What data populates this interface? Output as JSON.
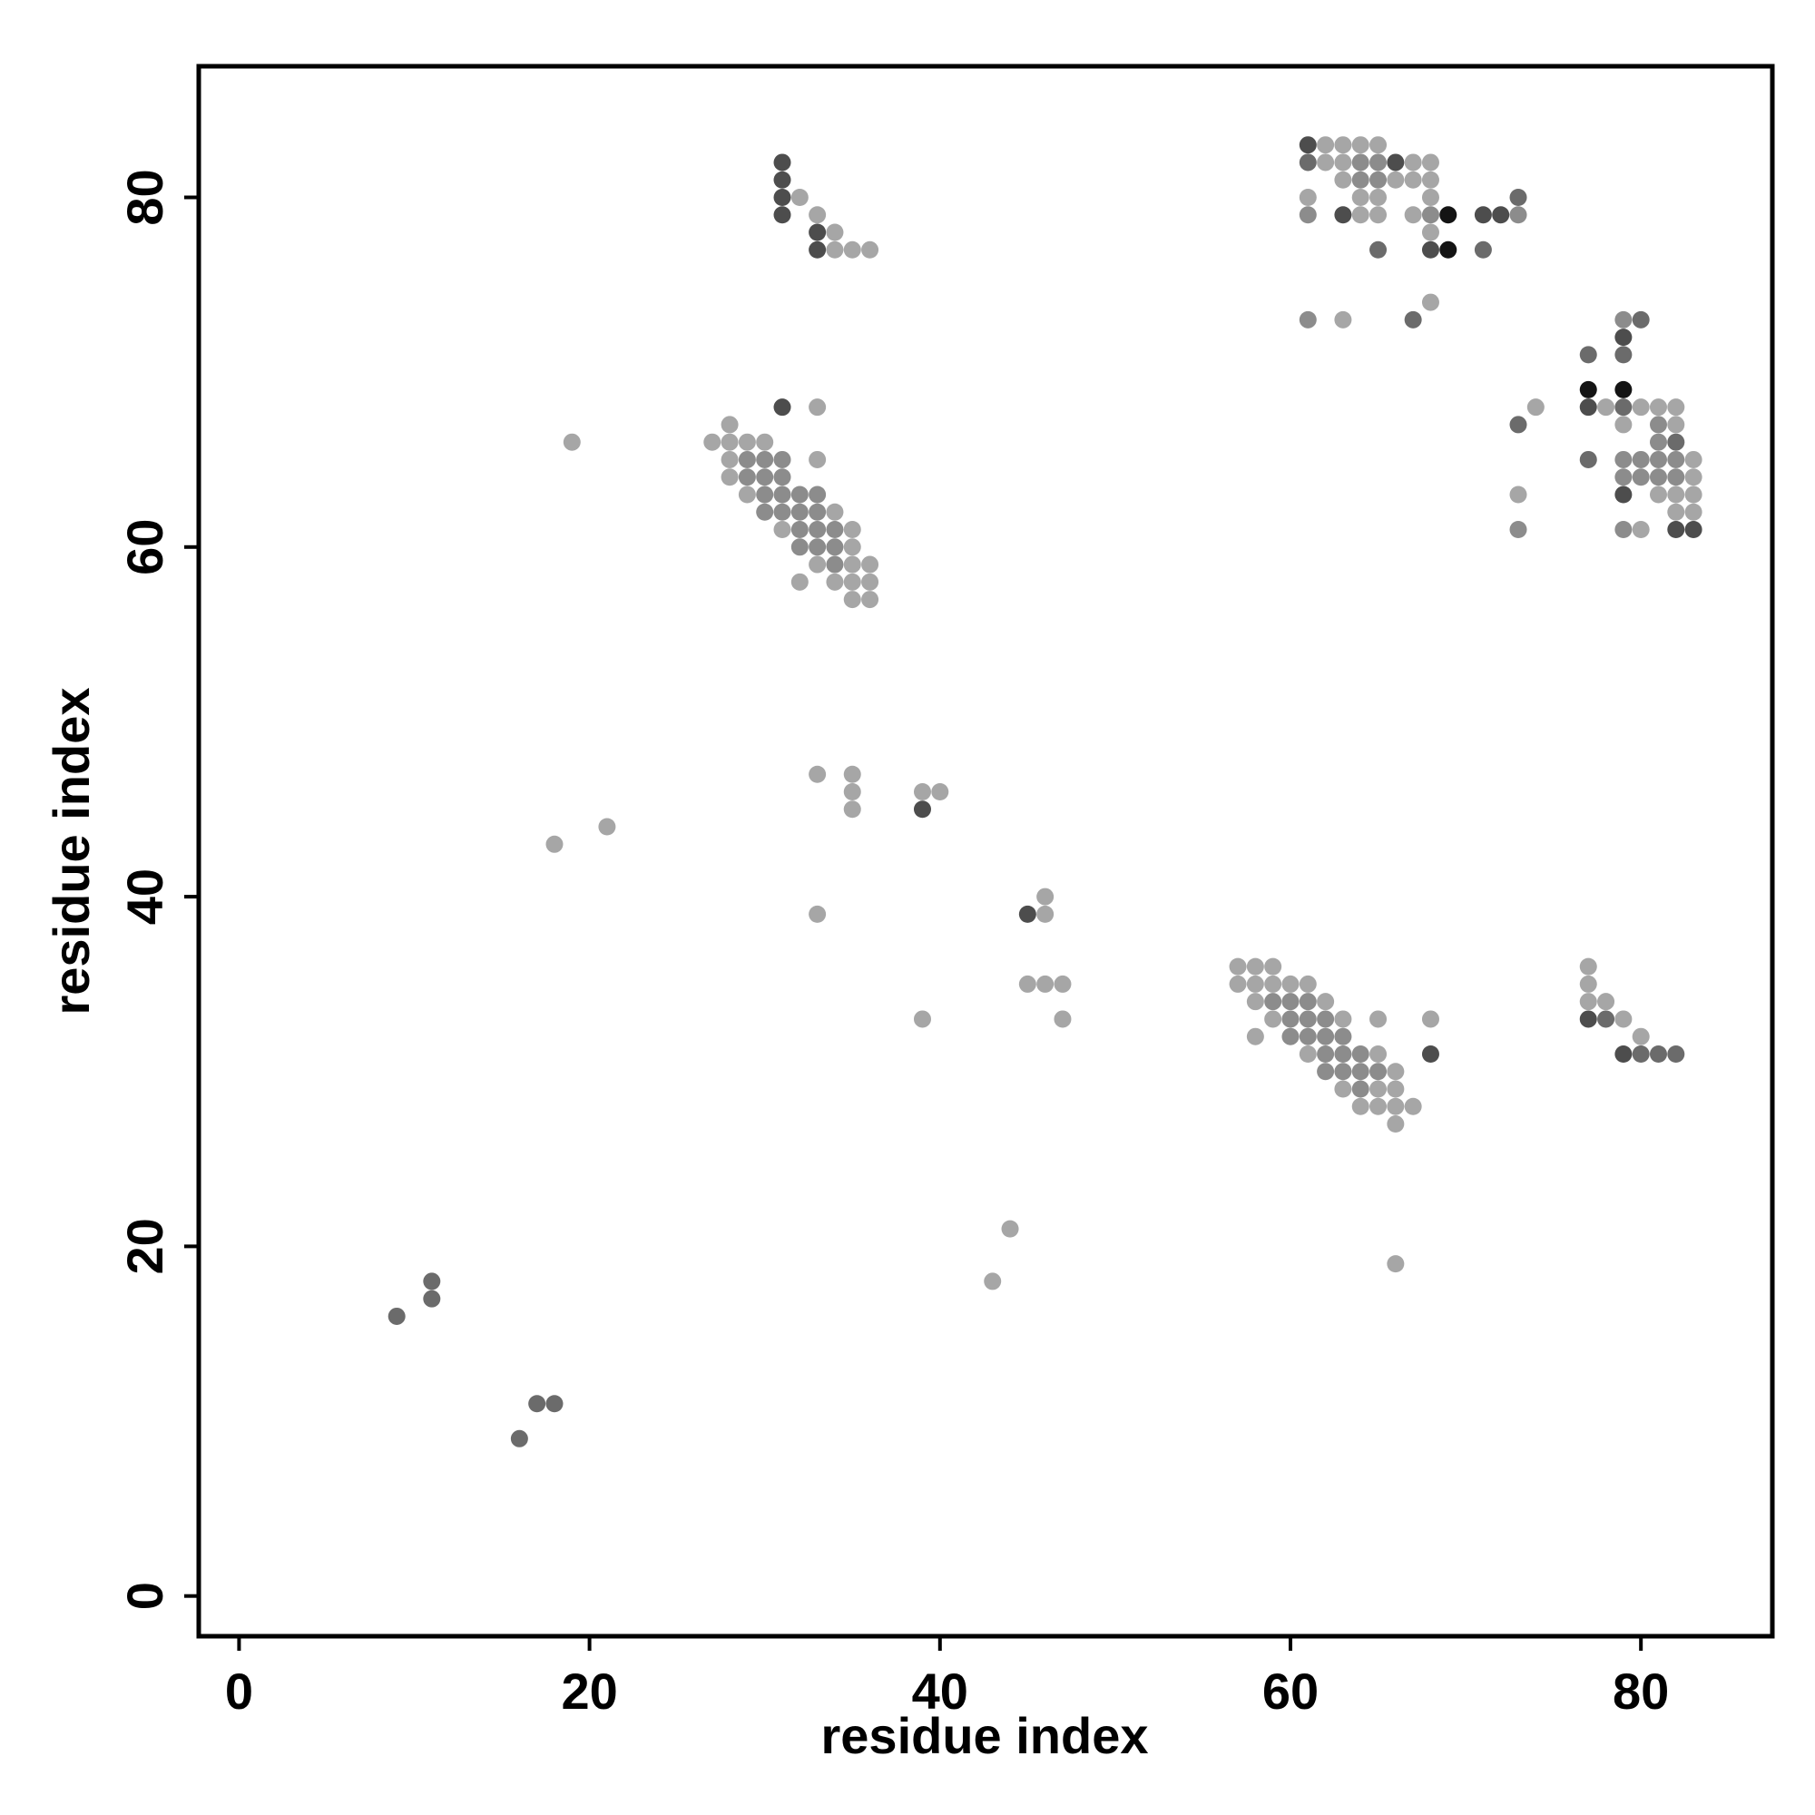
{
  "chart_data": {
    "type": "scatter",
    "xlabel": "residue index",
    "ylabel": "residue index",
    "xlim": [
      -2.3,
      87.5
    ],
    "ylim": [
      -2.3,
      87.5
    ],
    "x_ticks": [
      0,
      20,
      40,
      60,
      80
    ],
    "y_ticks": [
      0,
      20,
      40,
      60,
      80
    ],
    "grid": false,
    "shade_colors": {
      "light": "#a6a6a6",
      "mid": "#8c8c8c",
      "dark": "#6b6b6b",
      "darker": "#4d4d4d",
      "black": "#141414"
    },
    "points": [
      [
        9,
        16,
        "dark"
      ],
      [
        11,
        18,
        "dark"
      ],
      [
        11,
        17,
        "dark"
      ],
      [
        16,
        9,
        "dark"
      ],
      [
        17,
        11,
        "dark"
      ],
      [
        18,
        11,
        "dark"
      ],
      [
        18,
        43,
        "light"
      ],
      [
        19,
        66,
        "light"
      ],
      [
        21,
        44,
        "light"
      ],
      [
        27,
        66,
        "light"
      ],
      [
        28,
        67,
        "light"
      ],
      [
        28,
        66,
        "light"
      ],
      [
        28,
        65,
        "light"
      ],
      [
        28,
        64,
        "light"
      ],
      [
        29,
        66,
        "light"
      ],
      [
        29,
        65,
        "mid"
      ],
      [
        29,
        64,
        "mid"
      ],
      [
        29,
        63,
        "light"
      ],
      [
        30,
        66,
        "light"
      ],
      [
        30,
        65,
        "mid"
      ],
      [
        30,
        64,
        "mid"
      ],
      [
        30,
        63,
        "mid"
      ],
      [
        30,
        62,
        "mid"
      ],
      [
        31,
        65,
        "mid"
      ],
      [
        31,
        64,
        "mid"
      ],
      [
        31,
        63,
        "mid"
      ],
      [
        31,
        62,
        "mid"
      ],
      [
        31,
        61,
        "light"
      ],
      [
        32,
        63,
        "mid"
      ],
      [
        32,
        62,
        "mid"
      ],
      [
        32,
        61,
        "mid"
      ],
      [
        32,
        60,
        "mid"
      ],
      [
        32,
        58,
        "light"
      ],
      [
        33,
        63,
        "mid"
      ],
      [
        33,
        62,
        "mid"
      ],
      [
        33,
        61,
        "mid"
      ],
      [
        33,
        60,
        "mid"
      ],
      [
        33,
        59,
        "light"
      ],
      [
        34,
        62,
        "light"
      ],
      [
        34,
        61,
        "mid"
      ],
      [
        34,
        60,
        "mid"
      ],
      [
        34,
        59,
        "mid"
      ],
      [
        34,
        58,
        "light"
      ],
      [
        35,
        61,
        "light"
      ],
      [
        35,
        60,
        "light"
      ],
      [
        35,
        59,
        "light"
      ],
      [
        35,
        58,
        "light"
      ],
      [
        35,
        57,
        "light"
      ],
      [
        36,
        59,
        "light"
      ],
      [
        36,
        58,
        "light"
      ],
      [
        36,
        57,
        "light"
      ],
      [
        31,
        68,
        "darker"
      ],
      [
        33,
        68,
        "light"
      ],
      [
        33,
        65,
        "light"
      ],
      [
        31,
        82,
        "darker"
      ],
      [
        31,
        81,
        "darker"
      ],
      [
        31,
        80,
        "darker"
      ],
      [
        31,
        79,
        "darker"
      ],
      [
        32,
        80,
        "light"
      ],
      [
        33,
        79,
        "light"
      ],
      [
        33,
        78,
        "darker"
      ],
      [
        33,
        77,
        "darker"
      ],
      [
        34,
        78,
        "light"
      ],
      [
        34,
        77,
        "light"
      ],
      [
        35,
        77,
        "light"
      ],
      [
        36,
        77,
        "light"
      ],
      [
        33,
        47,
        "light"
      ],
      [
        35,
        47,
        "light"
      ],
      [
        35,
        46,
        "light"
      ],
      [
        35,
        45,
        "light"
      ],
      [
        33,
        39,
        "light"
      ],
      [
        39,
        46,
        "light"
      ],
      [
        39,
        45,
        "darker"
      ],
      [
        40,
        46,
        "light"
      ],
      [
        39,
        33,
        "light"
      ],
      [
        43,
        18,
        "light"
      ],
      [
        44,
        21,
        "light"
      ],
      [
        45,
        39,
        "darker"
      ],
      [
        46,
        40,
        "light"
      ],
      [
        46,
        39,
        "light"
      ],
      [
        45,
        35,
        "light"
      ],
      [
        46,
        35,
        "light"
      ],
      [
        47,
        35,
        "light"
      ],
      [
        47,
        33,
        "light"
      ],
      [
        57,
        36,
        "light"
      ],
      [
        57,
        35,
        "light"
      ],
      [
        58,
        36,
        "light"
      ],
      [
        58,
        35,
        "light"
      ],
      [
        58,
        34,
        "light"
      ],
      [
        58,
        32,
        "light"
      ],
      [
        59,
        36,
        "light"
      ],
      [
        59,
        35,
        "light"
      ],
      [
        59,
        34,
        "mid"
      ],
      [
        59,
        33,
        "light"
      ],
      [
        60,
        35,
        "light"
      ],
      [
        60,
        34,
        "mid"
      ],
      [
        60,
        33,
        "mid"
      ],
      [
        60,
        32,
        "mid"
      ],
      [
        61,
        35,
        "light"
      ],
      [
        61,
        34,
        "mid"
      ],
      [
        61,
        33,
        "mid"
      ],
      [
        61,
        32,
        "mid"
      ],
      [
        61,
        31,
        "light"
      ],
      [
        62,
        34,
        "light"
      ],
      [
        62,
        33,
        "mid"
      ],
      [
        62,
        32,
        "mid"
      ],
      [
        62,
        31,
        "mid"
      ],
      [
        62,
        30,
        "mid"
      ],
      [
        63,
        33,
        "light"
      ],
      [
        63,
        32,
        "mid"
      ],
      [
        63,
        31,
        "mid"
      ],
      [
        63,
        30,
        "mid"
      ],
      [
        63,
        29,
        "light"
      ],
      [
        64,
        31,
        "mid"
      ],
      [
        64,
        30,
        "mid"
      ],
      [
        64,
        29,
        "mid"
      ],
      [
        64,
        28,
        "light"
      ],
      [
        65,
        33,
        "light"
      ],
      [
        65,
        31,
        "light"
      ],
      [
        65,
        30,
        "mid"
      ],
      [
        65,
        29,
        "light"
      ],
      [
        65,
        28,
        "light"
      ],
      [
        66,
        30,
        "light"
      ],
      [
        66,
        29,
        "light"
      ],
      [
        66,
        28,
        "light"
      ],
      [
        66,
        27,
        "light"
      ],
      [
        67,
        28,
        "light"
      ],
      [
        68,
        33,
        "light"
      ],
      [
        68,
        31,
        "darker"
      ],
      [
        66,
        19,
        "light"
      ],
      [
        61,
        83,
        "darker"
      ],
      [
        61,
        82,
        "dark"
      ],
      [
        61,
        80,
        "light"
      ],
      [
        61,
        79,
        "mid"
      ],
      [
        61,
        73,
        "mid"
      ],
      [
        62,
        83,
        "light"
      ],
      [
        62,
        82,
        "light"
      ],
      [
        63,
        83,
        "light"
      ],
      [
        63,
        82,
        "light"
      ],
      [
        63,
        81,
        "light"
      ],
      [
        63,
        79,
        "darker"
      ],
      [
        63,
        73,
        "light"
      ],
      [
        64,
        83,
        "light"
      ],
      [
        64,
        82,
        "mid"
      ],
      [
        64,
        81,
        "mid"
      ],
      [
        64,
        80,
        "light"
      ],
      [
        64,
        79,
        "light"
      ],
      [
        65,
        83,
        "light"
      ],
      [
        65,
        82,
        "mid"
      ],
      [
        65,
        81,
        "mid"
      ],
      [
        65,
        80,
        "light"
      ],
      [
        65,
        79,
        "light"
      ],
      [
        65,
        77,
        "dark"
      ],
      [
        66,
        82,
        "darker"
      ],
      [
        66,
        81,
        "light"
      ],
      [
        67,
        82,
        "light"
      ],
      [
        67,
        81,
        "light"
      ],
      [
        67,
        79,
        "light"
      ],
      [
        67,
        73,
        "dark"
      ],
      [
        68,
        82,
        "light"
      ],
      [
        68,
        81,
        "light"
      ],
      [
        68,
        80,
        "light"
      ],
      [
        68,
        79,
        "mid"
      ],
      [
        68,
        78,
        "light"
      ],
      [
        68,
        77,
        "darker"
      ],
      [
        68,
        74,
        "light"
      ],
      [
        69,
        79,
        "black"
      ],
      [
        69,
        77,
        "black"
      ],
      [
        71,
        79,
        "darker"
      ],
      [
        71,
        77,
        "dark"
      ],
      [
        72,
        79,
        "darker"
      ],
      [
        73,
        80,
        "dark"
      ],
      [
        73,
        79,
        "mid"
      ],
      [
        73,
        67,
        "dark"
      ],
      [
        74,
        68,
        "light"
      ],
      [
        73,
        63,
        "light"
      ],
      [
        73,
        61,
        "mid"
      ],
      [
        77,
        71,
        "dark"
      ],
      [
        77,
        69,
        "black"
      ],
      [
        77,
        68,
        "darker"
      ],
      [
        77,
        65,
        "dark"
      ],
      [
        78,
        68,
        "light"
      ],
      [
        79,
        73,
        "mid"
      ],
      [
        79,
        72,
        "darker"
      ],
      [
        79,
        71,
        "dark"
      ],
      [
        79,
        69,
        "black"
      ],
      [
        79,
        68,
        "dark"
      ],
      [
        79,
        67,
        "light"
      ],
      [
        79,
        65,
        "mid"
      ],
      [
        79,
        64,
        "mid"
      ],
      [
        79,
        63,
        "darker"
      ],
      [
        79,
        61,
        "mid"
      ],
      [
        80,
        73,
        "dark"
      ],
      [
        80,
        68,
        "light"
      ],
      [
        80,
        65,
        "mid"
      ],
      [
        80,
        64,
        "mid"
      ],
      [
        80,
        61,
        "light"
      ],
      [
        81,
        68,
        "light"
      ],
      [
        81,
        67,
        "mid"
      ],
      [
        81,
        66,
        "mid"
      ],
      [
        81,
        65,
        "mid"
      ],
      [
        81,
        64,
        "mid"
      ],
      [
        81,
        63,
        "light"
      ],
      [
        82,
        68,
        "light"
      ],
      [
        82,
        67,
        "light"
      ],
      [
        82,
        66,
        "dark"
      ],
      [
        82,
        65,
        "mid"
      ],
      [
        82,
        64,
        "mid"
      ],
      [
        82,
        63,
        "light"
      ],
      [
        82,
        62,
        "light"
      ],
      [
        82,
        61,
        "darker"
      ],
      [
        83,
        65,
        "light"
      ],
      [
        83,
        64,
        "light"
      ],
      [
        83,
        63,
        "light"
      ],
      [
        83,
        62,
        "light"
      ],
      [
        83,
        61,
        "darker"
      ],
      [
        77,
        36,
        "light"
      ],
      [
        77,
        35,
        "light"
      ],
      [
        77,
        34,
        "light"
      ],
      [
        77,
        33,
        "darker"
      ],
      [
        78,
        34,
        "light"
      ],
      [
        78,
        33,
        "dark"
      ],
      [
        79,
        33,
        "light"
      ],
      [
        80,
        32,
        "light"
      ],
      [
        79,
        31,
        "darker"
      ],
      [
        80,
        31,
        "dark"
      ],
      [
        81,
        31,
        "dark"
      ],
      [
        82,
        31,
        "dark"
      ]
    ]
  }
}
